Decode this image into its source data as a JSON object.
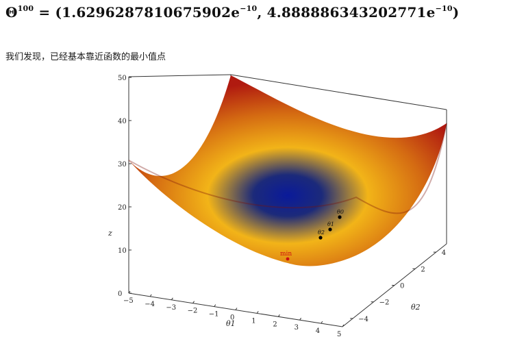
{
  "equation": {
    "symbol": "Θ",
    "superscript": "100",
    "equals": " = (",
    "value1": "1.6296287810675902e",
    "exp1": "−10",
    "sep": ", ",
    "value2": "4.888886343202771e",
    "exp2": "−10",
    "close": ")"
  },
  "caption": "我们发现，已经基本靠近函数的最小值点",
  "colors": {
    "surface_high": "#b01a10",
    "surface_mid": "#f2b418",
    "surface_low": "#0a1a9a",
    "min_marker": "#cc1111",
    "point_marker": "#000000"
  },
  "chart_data": {
    "type": "surface3d",
    "function": "z = θ1² + θ2²",
    "title": "",
    "xlabel": "θ1",
    "ylabel": "θ2",
    "zlabel": "z",
    "x_ticks": [
      "−5",
      "−4",
      "−3",
      "−2",
      "−1",
      "0",
      "1",
      "2",
      "3",
      "4",
      "5"
    ],
    "y_ticks": [
      "−4",
      "−2",
      "0",
      "2",
      "4"
    ],
    "z_ticks": [
      "0",
      "10",
      "20",
      "30",
      "40",
      "50"
    ],
    "xlim": [
      -5,
      5
    ],
    "ylim": [
      -5,
      5
    ],
    "zlim": [
      0,
      50
    ],
    "points": [
      {
        "label": "θ0",
        "theta1": 3.0,
        "theta2": 4.0,
        "z": 25
      },
      {
        "label": "θ1",
        "theta1": 2.4,
        "theta2": 3.2,
        "z": 16
      },
      {
        "label": "θ2",
        "theta1": 1.92,
        "theta2": 2.56,
        "z": 10.2
      }
    ],
    "min_point": {
      "label": "min",
      "theta1": 0,
      "theta2": 0,
      "z": 0
    }
  }
}
